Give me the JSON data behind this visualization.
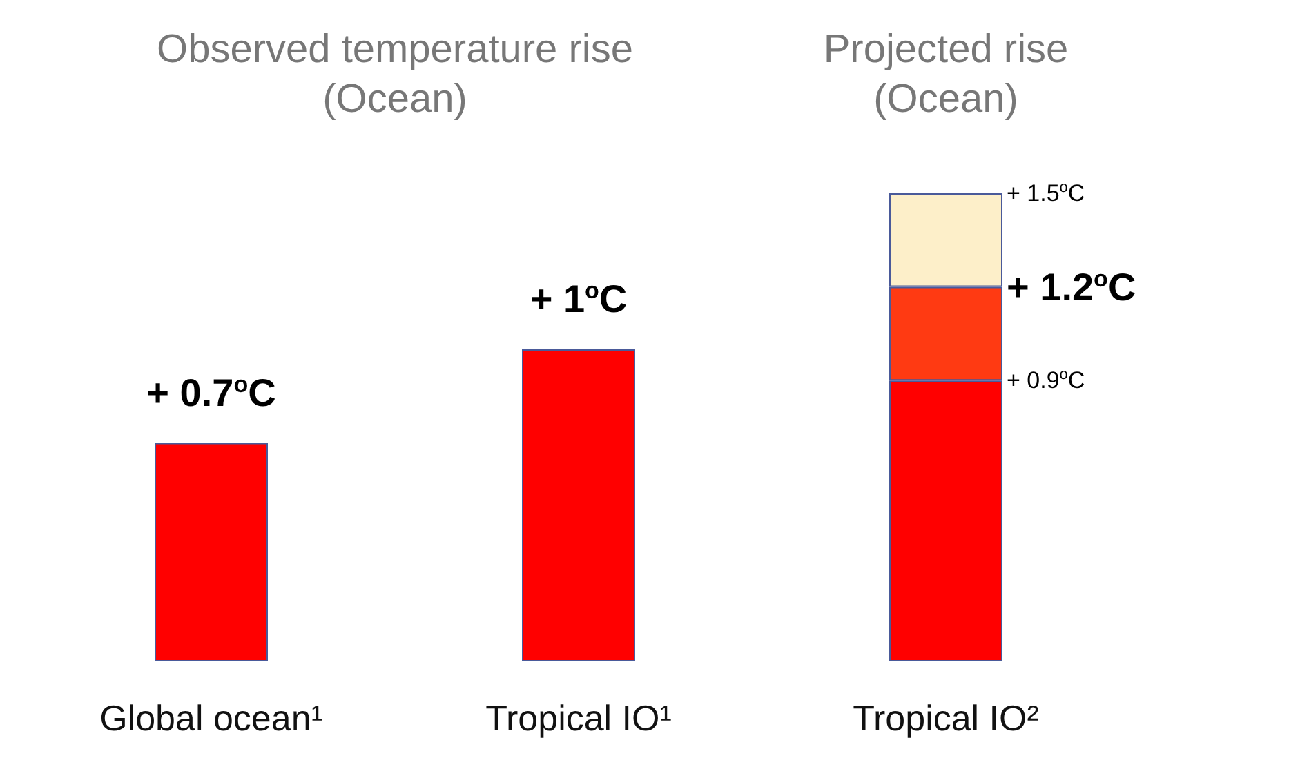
{
  "chart_data": {
    "type": "bar",
    "stacked": true,
    "categories": [
      "Global ocean¹",
      "Tropical IO¹",
      "Tropical IO²"
    ],
    "series": [
      {
        "color": "#ff0000",
        "values": [
          0.7,
          1,
          0.9
        ],
        "value_labels": [
          "+ 0.7$^{o}$C",
          "+ 1$^{o}$C",
          null
        ]
      },
      {
        "color": "#ff3a12",
        "values": [
          null,
          null,
          0.3
        ]
      },
      {
        "color": "#fdefc9",
        "values": [
          null,
          null,
          0.3
        ]
      }
    ],
    "annotations": [
      "Observed temperature rise\n(Ocean)",
      "Projected rise\n(Ocean)",
      {
        "text": "+ 0.9$^{o}$C",
        "x": "Tropical IO²",
        "y": 0.9
      },
      {
        "text": "+ 1.2$^{o}$C",
        "x": "Tropical IO²",
        "y": 1.2
      },
      {
        "text": "+ 1.5$^{o}$C",
        "x": "Tropical IO²",
        "y": 1.5
      }
    ]
  }
}
